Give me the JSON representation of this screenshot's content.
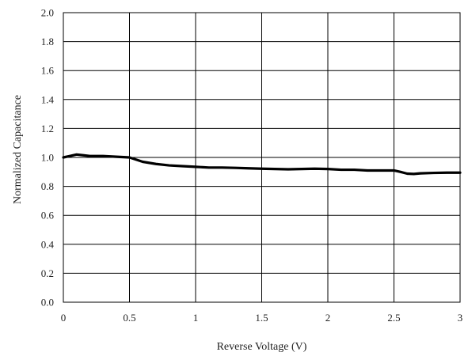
{
  "chart_data": {
    "type": "line",
    "title": "",
    "xlabel": "Reverse Voltage (V)",
    "ylabel": "Normalized Capacitance",
    "xlim": [
      0,
      3
    ],
    "ylim": [
      0,
      2
    ],
    "x_ticks": [
      "0",
      "0.5",
      "1",
      "1.5",
      "2",
      "2.5",
      "3"
    ],
    "y_ticks": [
      "0.0",
      "0.2",
      "0.4",
      "0.6",
      "0.8",
      "1.0",
      "1.2",
      "1.4",
      "1.6",
      "1.8",
      "2.0"
    ],
    "grid": true,
    "legend": "none",
    "series": [
      {
        "color": "#000000",
        "x": [
          0,
          0.05,
          0.1,
          0.15,
          0.2,
          0.3,
          0.4,
          0.5,
          0.55,
          0.6,
          0.7,
          0.8,
          0.9,
          1.0,
          1.1,
          1.2,
          1.3,
          1.4,
          1.5,
          1.6,
          1.7,
          1.8,
          1.9,
          2.0,
          2.1,
          2.2,
          2.3,
          2.4,
          2.5,
          2.55,
          2.6,
          2.65,
          2.7,
          2.8,
          2.9,
          3.0
        ],
        "y": [
          1.0,
          1.01,
          1.02,
          1.015,
          1.01,
          1.01,
          1.005,
          1.0,
          0.985,
          0.97,
          0.955,
          0.945,
          0.94,
          0.935,
          0.93,
          0.93,
          0.928,
          0.925,
          0.922,
          0.92,
          0.918,
          0.92,
          0.922,
          0.92,
          0.915,
          0.915,
          0.91,
          0.91,
          0.91,
          0.9,
          0.888,
          0.886,
          0.89,
          0.893,
          0.895,
          0.895
        ]
      }
    ]
  }
}
